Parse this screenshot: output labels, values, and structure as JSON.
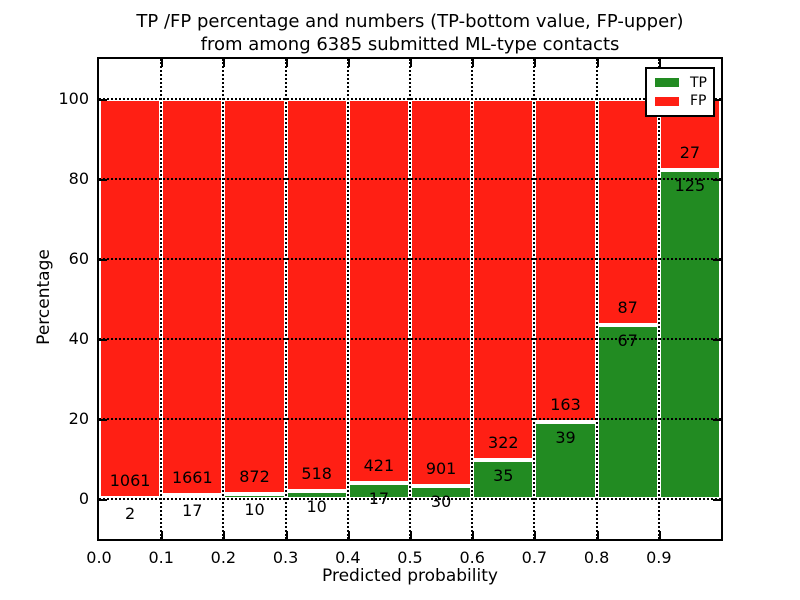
{
  "chart_data": {
    "type": "bar",
    "stacked": true,
    "title": "TP /FP percentage and numbers (TP-bottom value, FP-upper)\nfrom among 6385 submitted ML-type contacts",
    "title_line1": "TP /FP percentage and numbers (TP-bottom value, FP-upper)",
    "title_line2": "from among 6385 submitted ML-type contacts",
    "xlabel": "Predicted probability",
    "ylabel": "Percentage",
    "total_contacts": 6385,
    "xlim": [
      0.0,
      1.0
    ],
    "ylim": [
      -10,
      110
    ],
    "bin_width": 0.1,
    "grid": "dotted",
    "x_tick_labels": [
      "0.0",
      "0.1",
      "0.2",
      "0.3",
      "0.4",
      "0.5",
      "0.6",
      "0.7",
      "0.8",
      "0.9"
    ],
    "y_ticks": [
      0,
      20,
      40,
      60,
      80,
      100
    ],
    "y_tick_labels": [
      "0",
      "20",
      "40",
      "60",
      "80",
      "100"
    ],
    "categories": [
      "0.0-0.1",
      "0.1-0.2",
      "0.2-0.3",
      "0.3-0.4",
      "0.4-0.5",
      "0.5-0.6",
      "0.6-0.7",
      "0.7-0.8",
      "0.8-0.9",
      "0.9-1.0"
    ],
    "series": [
      {
        "name": "TP",
        "color": "#228b22",
        "counts": [
          2,
          17,
          10,
          10,
          17,
          30,
          35,
          39,
          67,
          125
        ]
      },
      {
        "name": "FP",
        "color": "#ff1f14",
        "counts": [
          1061,
          1661,
          872,
          518,
          421,
          901,
          322,
          163,
          87,
          27
        ]
      }
    ],
    "tp_percent": [
      0.19,
      1.01,
      1.13,
      1.89,
      3.88,
      3.22,
      9.8,
      19.31,
      43.51,
      82.24
    ],
    "legend": {
      "position": "upper right",
      "entries": [
        "TP",
        "FP"
      ]
    },
    "colors": {
      "tp": "#228b22",
      "fp": "#ff1f14",
      "bar_edge": "#ffffff",
      "grid": "#000000",
      "text": "#000000",
      "background": "#ffffff"
    }
  }
}
